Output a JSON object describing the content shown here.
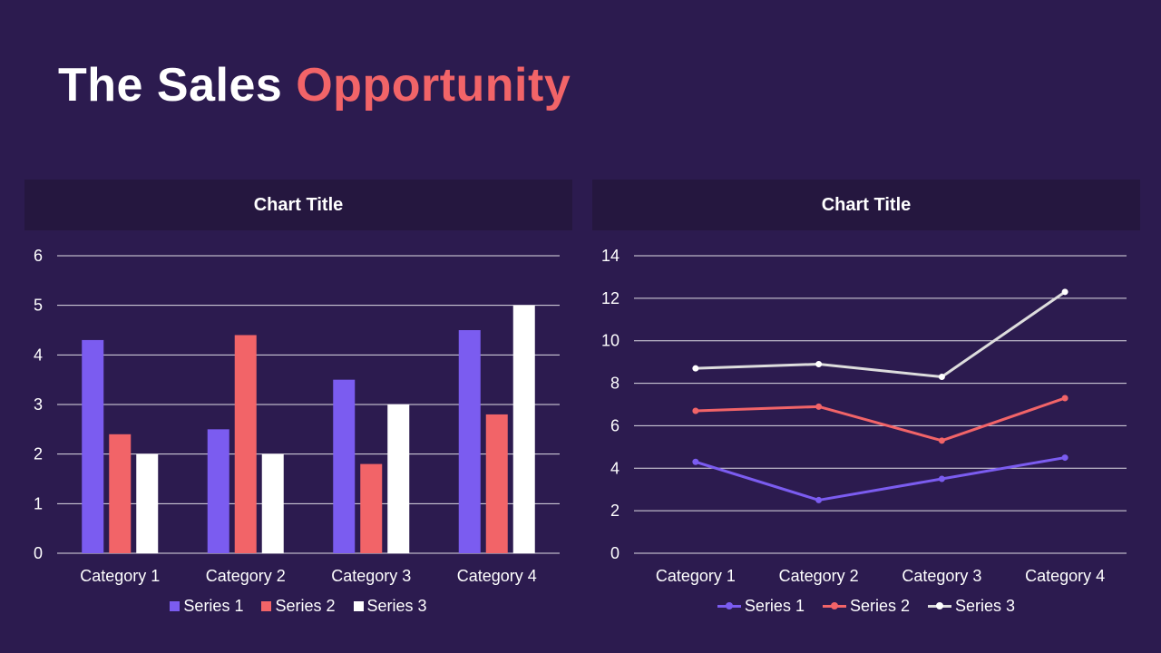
{
  "slide": {
    "title_main": "The Sales ",
    "title_accent": "Opportunity"
  },
  "colors": {
    "background": "#2c1b4f",
    "header_bg": "#25173f",
    "accent": "#f26468",
    "series1": "#7b5cf0",
    "series2": "#f26468",
    "series3": "#ffffff",
    "series3_line": "#dddddd",
    "gridline": "#ffffff"
  },
  "chart_data": [
    {
      "type": "bar",
      "title": "Chart Title",
      "categories": [
        "Category 1",
        "Category 2",
        "Category 3",
        "Category 4"
      ],
      "series": [
        {
          "name": "Series 1",
          "values": [
            4.3,
            2.5,
            3.5,
            4.5
          ]
        },
        {
          "name": "Series 2",
          "values": [
            2.4,
            4.4,
            1.8,
            2.8
          ]
        },
        {
          "name": "Series 3",
          "values": [
            2,
            2,
            3,
            5
          ]
        }
      ],
      "ylim": [
        0,
        6
      ],
      "yticks": [
        0,
        1,
        2,
        3,
        4,
        5,
        6
      ],
      "xlabel": "",
      "ylabel": "",
      "grid": true,
      "legend": "bottom"
    },
    {
      "type": "line",
      "title": "Chart Title",
      "categories": [
        "Category 1",
        "Category 2",
        "Category 3",
        "Category 4"
      ],
      "series": [
        {
          "name": "Series 1",
          "values": [
            4.3,
            2.5,
            3.5,
            4.5
          ]
        },
        {
          "name": "Series 2",
          "values": [
            6.7,
            6.9,
            5.3,
            7.3
          ]
        },
        {
          "name": "Series 3",
          "values": [
            8.7,
            8.9,
            8.3,
            12.3
          ]
        }
      ],
      "ylim": [
        0,
        14
      ],
      "yticks": [
        0,
        2,
        4,
        6,
        8,
        10,
        12,
        14
      ],
      "xlabel": "",
      "ylabel": "",
      "grid": true,
      "legend": "bottom"
    }
  ]
}
